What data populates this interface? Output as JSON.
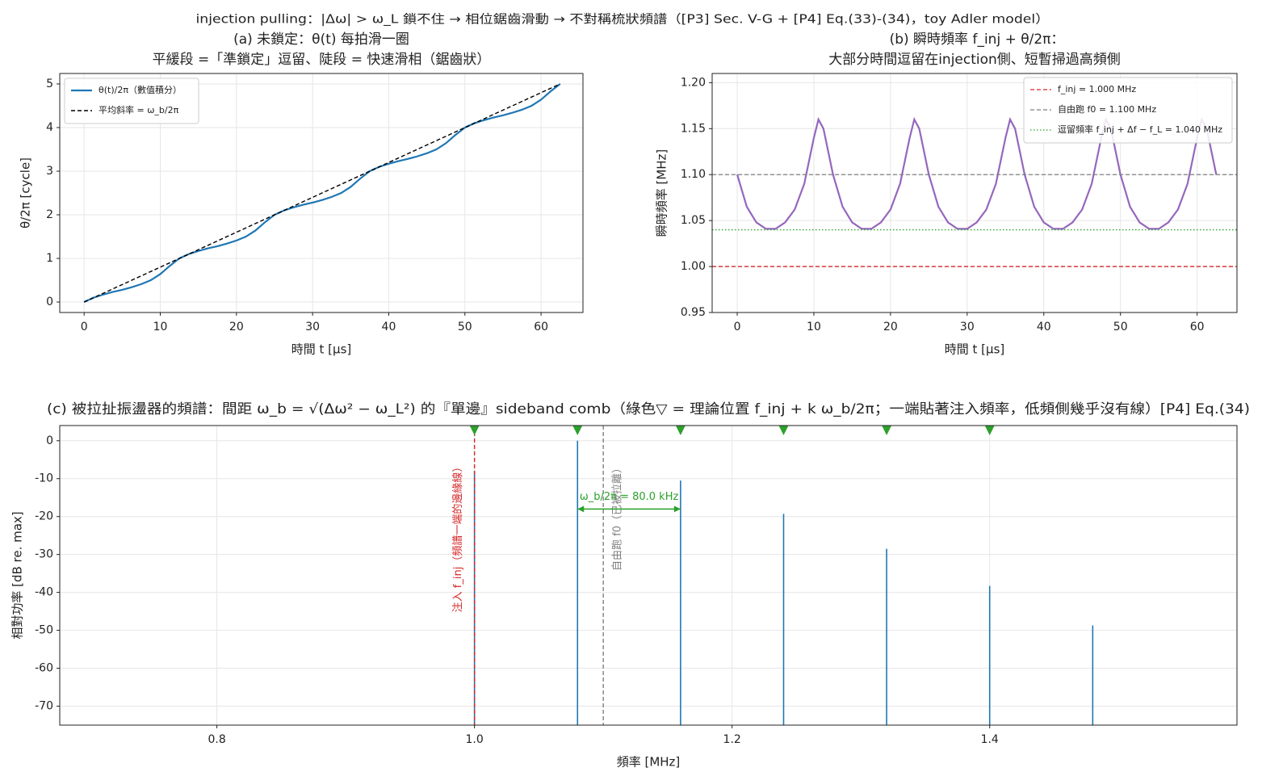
{
  "title": "injection pulling：|Δω| > ω_L 鎖不住 → 相位鋸齒滑動 → 不對稱梳狀頻譜（[P3] Sec. V-G + [P4] Eq.(33)-(34)，toy Adler model）",
  "chart_data": [
    {
      "type": "line",
      "title": "(a) 未鎖定：θ(t) 每拍滑一圈",
      "subtitle": "平緩段 =「準鎖定」逗留、陡段 = 快速滑相（鋸齒狀）",
      "xlabel": "時間 t [μs]",
      "ylabel": "θ/2π [cycle]",
      "xlim": [
        -3.2,
        65.5
      ],
      "xticks": [
        0,
        10,
        20,
        30,
        40,
        50,
        60
      ],
      "ylim": [
        -0.24,
        5.24
      ],
      "yticks": [
        0,
        1,
        2,
        3,
        4,
        5
      ],
      "grid": true,
      "legend": "upper left",
      "series": [
        {
          "name": "θ(t)/2π（數值積分）",
          "color": "#1f77b4",
          "style": "solid",
          "x": [
            0,
            1.25,
            2.5,
            3.75,
            5,
            6.25,
            7.5,
            8.75,
            10,
            11.25,
            12.5,
            13.75,
            15,
            16.25,
            17.5,
            18.75,
            20,
            21.25,
            22.5,
            23.75,
            25,
            26.25,
            27.5,
            28.75,
            30,
            31.25,
            32.5,
            33.75,
            35,
            36.25,
            37.5,
            38.75,
            40,
            41.25,
            42.5,
            43.75,
            45,
            46.25,
            47.5,
            48.75,
            50,
            51.25,
            52.5,
            53.75,
            55,
            56.25,
            57.5,
            58.75,
            60,
            61.25,
            62.5
          ],
          "values": [
            0,
            0.1,
            0.17,
            0.23,
            0.28,
            0.34,
            0.41,
            0.5,
            0.64,
            0.83,
            1,
            1.1,
            1.17,
            1.23,
            1.28,
            1.34,
            1.41,
            1.5,
            1.64,
            1.83,
            2,
            2.1,
            2.17,
            2.23,
            2.28,
            2.34,
            2.41,
            2.5,
            2.64,
            2.83,
            3,
            3.1,
            3.17,
            3.23,
            3.28,
            3.34,
            3.41,
            3.5,
            3.64,
            3.83,
            4,
            4.1,
            4.17,
            4.23,
            4.28,
            4.34,
            4.41,
            4.5,
            4.64,
            4.83,
            5
          ]
        },
        {
          "name": "平均斜率 = ω_b/2π",
          "color": "#000000",
          "style": "dashed",
          "x": [
            0,
            62.5
          ],
          "values": [
            0,
            5
          ]
        }
      ]
    },
    {
      "type": "line",
      "title": "(b) 瞬時頻率 f_inj + θ/2π：",
      "subtitle": "大部分時間逗留在injection側、短暫掃過高頻側",
      "xlabel": "時間 t [μs]",
      "ylabel": "瞬時頻率 [MHz]",
      "xlim": [
        -3.27,
        65.2
      ],
      "xticks": [
        0,
        10,
        20,
        30,
        40,
        50,
        60
      ],
      "ylim": [
        0.95,
        1.21
      ],
      "yticks": [
        0.95,
        {
          "value": 1.0,
          "label": "1.00"
        },
        1.05,
        {
          "value": 1.1,
          "label": "1.10"
        },
        1.15,
        {
          "value": 1.2,
          "label": "1.20"
        }
      ],
      "grid": true,
      "legend": "upper right",
      "series": [
        {
          "color": "#9467bd",
          "style": "solid",
          "x": [
            0,
            1.25,
            2.5,
            3.75,
            5,
            6.25,
            7.5,
            8.75,
            10,
            10.6,
            11.25,
            12.5,
            13.75,
            15,
            16.25,
            17.5,
            18.75,
            20,
            21.25,
            22.5,
            23.1,
            23.75,
            25,
            26.25,
            27.5,
            28.75,
            30,
            31.25,
            32.5,
            33.75,
            35,
            35.6,
            36.25,
            37.5,
            38.75,
            40,
            41.25,
            42.5,
            43.75,
            45,
            46.25,
            47.5,
            48.1,
            48.75,
            50,
            51.25,
            52.5,
            53.75,
            55,
            56.25,
            57.5,
            58.75,
            60,
            60.6,
            61.25,
            62.5
          ],
          "values": [
            1.1,
            1.065,
            1.048,
            1.041,
            1.041,
            1.048,
            1.062,
            1.09,
            1.14,
            1.16,
            1.15,
            1.1,
            1.065,
            1.048,
            1.041,
            1.041,
            1.048,
            1.062,
            1.09,
            1.14,
            1.16,
            1.15,
            1.1,
            1.065,
            1.048,
            1.041,
            1.041,
            1.048,
            1.062,
            1.09,
            1.14,
            1.16,
            1.15,
            1.1,
            1.065,
            1.048,
            1.041,
            1.041,
            1.048,
            1.062,
            1.09,
            1.14,
            1.16,
            1.15,
            1.1,
            1.065,
            1.048,
            1.041,
            1.041,
            1.048,
            1.062,
            1.09,
            1.14,
            1.16,
            1.15,
            1.1
          ]
        }
      ],
      "reference_lines": [
        {
          "name": "f_inj = 1.000 MHz",
          "value": 1.0,
          "color": "#d62728",
          "style": "dashed"
        },
        {
          "name": "自由跑 f0 = 1.100 MHz",
          "value": 1.1,
          "color": "#808080",
          "style": "dashed"
        },
        {
          "name": "逗留頻率 f_inj + Δf − f_L = 1.040 MHz",
          "value": 1.04,
          "color": "#2ca02c",
          "style": "dotted"
        }
      ]
    },
    {
      "type": "stem",
      "title": "(c) 被拉扯振盪器的頻譜：間距 ω_b = √(Δω² − ω_L²) 的『單邊』sideband comb（綠色▽ = 理論位置 f_inj + k ω_b/2π；一端貼著注入頻率，低頻側幾乎沒有線）[P4] Eq.(34)",
      "xlabel": "頻率 [MHz]",
      "ylabel": "相對功率 [dB re. max]",
      "xlim": [
        0.678,
        1.592
      ],
      "xticks": [
        0.8,
        {
          "value": 1.0,
          "label": "1.0"
        },
        1.2,
        1.4
      ],
      "ylim": [
        -75,
        4
      ],
      "yticks": [
        0,
        -10,
        -20,
        -30,
        -40,
        -50,
        -60,
        -70
      ],
      "grid": true,
      "color": "#1f77b4",
      "x": [
        1.0,
        1.08,
        1.16,
        1.24,
        1.32,
        1.4,
        1.48
      ],
      "values": [
        -8,
        0,
        -10.5,
        -19.3,
        -28.5,
        -38.3,
        -48.7
      ],
      "markers": {
        "color": "#2ca02c",
        "x": [
          1.0,
          1.08,
          1.16,
          1.24,
          1.32,
          1.4
        ]
      },
      "vlines": [
        {
          "x": 1.0,
          "color": "#d62728",
          "style": "dashed",
          "label": "注入 f_inj（頻譜一端的邊緣線）"
        },
        {
          "x": 1.1,
          "color": "#808080",
          "style": "dashed",
          "label": "自由跑 f0（已被拉離）"
        }
      ],
      "arrow": {
        "from": 1.08,
        "to": 1.16,
        "y": -18,
        "color": "#2ca02c",
        "label": "ω_b/2π = 80.0 kHz"
      }
    }
  ]
}
